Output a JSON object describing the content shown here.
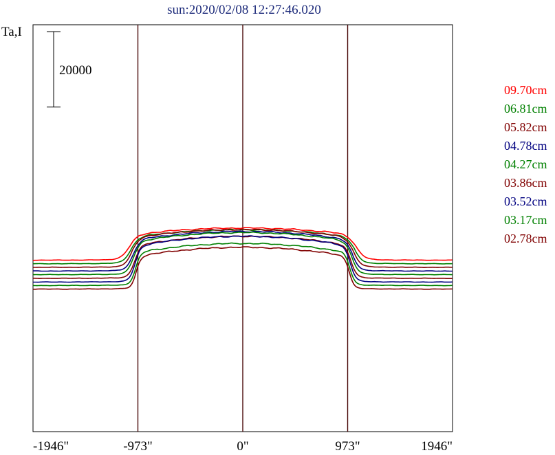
{
  "chart_data": {
    "type": "line",
    "title": "sun:2020/02/08 12:27:46.020",
    "ylabel": "Ta,I",
    "xlabel": "",
    "x_ticks": [
      -1946,
      -973,
      0,
      973,
      1946
    ],
    "x_tick_labels": [
      "-1946\"",
      "-973\"",
      "0\"",
      "973\"",
      "1946\""
    ],
    "xlim": [
      -1946,
      1946
    ],
    "vertical_lines": [
      -973,
      0,
      973
    ],
    "scale_bar": {
      "value": 20000,
      "label": "20000"
    },
    "grid": false,
    "legend_placement": "right",
    "series": [
      {
        "name": "09.70cm",
        "color": "#ff0000",
        "baseline": 14700,
        "peak": 26000,
        "limb": 1055,
        "steep": 40
      },
      {
        "name": "06.81cm",
        "color": "#008000",
        "baseline": 11800,
        "peak": 27500,
        "limb": 1040,
        "steep": 36
      },
      {
        "name": "05.82cm",
        "color": "#800000",
        "baseline": 8900,
        "peak": 30500,
        "limb": 1030,
        "steep": 34
      },
      {
        "name": "04.78cm",
        "color": "#000080",
        "baseline": 5900,
        "peak": 32000,
        "limb": 1020,
        "steep": 32
      },
      {
        "name": "04.27cm",
        "color": "#008000",
        "baseline": 3000,
        "peak": 34000,
        "limb": 1015,
        "steep": 30
      },
      {
        "name": "03.86cm",
        "color": "#800000",
        "baseline": 0,
        "peak": 34000,
        "limb": 1005,
        "steep": 28
      },
      {
        "name": "03.52cm",
        "color": "#000080",
        "baseline": -3000,
        "peak": 37000,
        "limb": 1000,
        "steep": 26
      },
      {
        "name": "03.17cm",
        "color": "#008000",
        "baseline": -5800,
        "peak": 34000,
        "limb": 995,
        "steep": 24
      },
      {
        "name": "02.78cm",
        "color": "#800000",
        "baseline": -8700,
        "peak": 33800,
        "limb": 990,
        "steep": 22
      }
    ]
  }
}
